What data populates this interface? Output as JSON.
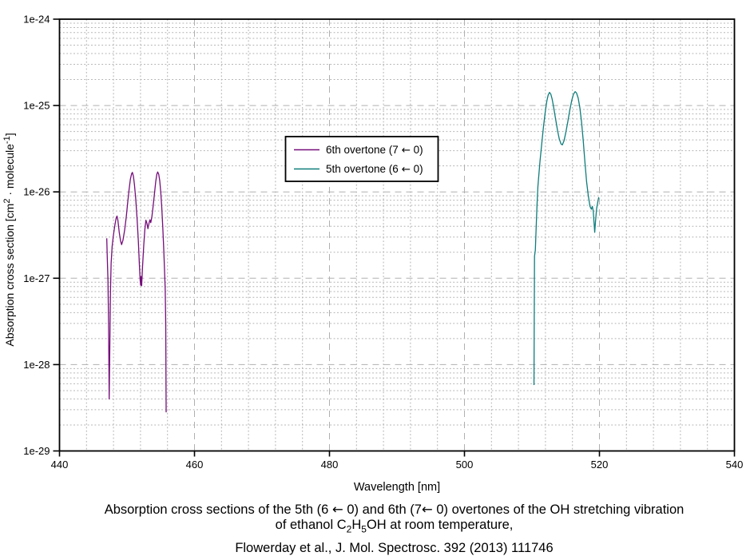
{
  "chart_data": {
    "type": "line",
    "xlabel": "Wavelength [nm]",
    "ylabel_parts": [
      {
        "t": "Absorption cross section [cm"
      },
      {
        "t": "2",
        "sup": true
      },
      {
        "t": " · molecule"
      },
      {
        "t": "-1",
        "sup": true
      },
      {
        "t": "]"
      }
    ],
    "xlim": [
      440,
      540
    ],
    "ylim": [
      1e-29,
      1e-24
    ],
    "x_major_ticks": [
      440,
      460,
      480,
      500,
      520,
      540
    ],
    "x_minor_step": 4,
    "y_tick_labels": [
      "1e-24",
      "1e-25",
      "1e-26",
      "1e-27",
      "1e-28",
      "1e-29"
    ],
    "grid": {
      "major": "dashed",
      "minor": "dotted",
      "color": "#b0b0b0"
    },
    "legend": {
      "entries": [
        {
          "label": "6th overtone (7 ← 0)",
          "color": "#750d7a"
        },
        {
          "label": "5th overtone (6 ← 0)",
          "color": "#0e7d7c"
        }
      ]
    },
    "series": [
      {
        "name": "6th overtone (7 ← 0)",
        "color": "#750d7a",
        "points": [
          [
            447.0,
            2.9e-27
          ],
          [
            447.08,
            1.7e-27
          ],
          [
            447.18,
            9.5e-28
          ],
          [
            447.27,
            3e-28
          ],
          [
            447.36,
            4e-29
          ],
          [
            447.45,
            1.5e-28
          ],
          [
            447.55,
            7e-28
          ],
          [
            447.65,
            1.5e-27
          ],
          [
            447.8,
            2.35e-27
          ],
          [
            448.0,
            3.2e-27
          ],
          [
            448.2,
            4.1e-27
          ],
          [
            448.4,
            5e-27
          ],
          [
            448.52,
            5.25e-27
          ],
          [
            448.65,
            4.7e-27
          ],
          [
            448.85,
            3.4e-27
          ],
          [
            449.05,
            2.7e-27
          ],
          [
            449.2,
            2.45e-27
          ],
          [
            449.4,
            2.75e-27
          ],
          [
            449.65,
            3.6e-27
          ],
          [
            449.9,
            5.2e-27
          ],
          [
            450.1,
            7.5e-27
          ],
          [
            450.3,
            1.05e-26
          ],
          [
            450.5,
            1.4e-26
          ],
          [
            450.68,
            1.62e-26
          ],
          [
            450.8,
            1.68e-26
          ],
          [
            450.95,
            1.52e-26
          ],
          [
            451.1,
            1.22e-26
          ],
          [
            451.3,
            8.2e-27
          ],
          [
            451.5,
            4.8e-27
          ],
          [
            451.68,
            2.7e-27
          ],
          [
            451.84,
            1.4e-27
          ],
          [
            451.95,
            9.5e-28
          ],
          [
            452.02,
            8.3e-28
          ],
          [
            452.1,
            1.05e-27
          ],
          [
            452.17,
            8.2e-28
          ],
          [
            452.3,
            1.35e-27
          ],
          [
            452.48,
            2.4e-27
          ],
          [
            452.65,
            3.7e-27
          ],
          [
            452.8,
            4.7e-27
          ],
          [
            452.95,
            4.35e-27
          ],
          [
            453.1,
            3.75e-27
          ],
          [
            453.28,
            4.4e-27
          ],
          [
            453.4,
            4.75e-27
          ],
          [
            453.52,
            4.4e-27
          ],
          [
            453.68,
            5.1e-27
          ],
          [
            453.85,
            6.6e-27
          ],
          [
            454.05,
            9.2e-27
          ],
          [
            454.25,
            1.3e-26
          ],
          [
            454.42,
            1.6e-26
          ],
          [
            454.55,
            1.7e-26
          ],
          [
            454.7,
            1.6e-26
          ],
          [
            454.85,
            1.35e-26
          ],
          [
            455.0,
            1e-26
          ],
          [
            455.15,
            6.6e-27
          ],
          [
            455.3,
            3.9e-27
          ],
          [
            455.44,
            2.2e-27
          ],
          [
            455.56,
            1.25e-27
          ],
          [
            455.66,
            7.5e-28
          ],
          [
            455.74,
            3e-28
          ],
          [
            455.8,
            2.8e-29
          ]
        ]
      },
      {
        "name": "5th overtone (6 ← 0)",
        "color": "#0e7d7c",
        "points": [
          [
            510.3,
            5.8e-29
          ],
          [
            510.34,
            3.5e-28
          ],
          [
            510.38,
            1.8e-27
          ],
          [
            510.5,
            2.1e-27
          ],
          [
            510.62,
            3.8e-27
          ],
          [
            510.75,
            7e-27
          ],
          [
            510.88,
            1.15e-26
          ],
          [
            511.0,
            1.5e-26
          ],
          [
            511.2,
            2.3e-26
          ],
          [
            511.45,
            3.6e-26
          ],
          [
            511.7,
            5.6e-26
          ],
          [
            511.95,
            8.2e-26
          ],
          [
            512.2,
            1.12e-25
          ],
          [
            512.4,
            1.32e-25
          ],
          [
            512.6,
            1.42e-25
          ],
          [
            512.8,
            1.35e-25
          ],
          [
            513.0,
            1.18e-25
          ],
          [
            513.25,
            9.2e-26
          ],
          [
            513.5,
            7e-26
          ],
          [
            513.8,
            5.1e-26
          ],
          [
            514.05,
            4.1e-26
          ],
          [
            514.3,
            3.6e-26
          ],
          [
            514.5,
            3.5e-26
          ],
          [
            514.75,
            3.9e-26
          ],
          [
            515.0,
            4.8e-26
          ],
          [
            515.3,
            6.4e-26
          ],
          [
            515.6,
            8.8e-26
          ],
          [
            515.9,
            1.15e-25
          ],
          [
            516.15,
            1.35e-25
          ],
          [
            516.4,
            1.45e-25
          ],
          [
            516.6,
            1.4e-25
          ],
          [
            516.85,
            1.22e-25
          ],
          [
            517.1,
            9.4e-26
          ],
          [
            517.35,
            6.4e-26
          ],
          [
            517.6,
            3.9e-26
          ],
          [
            517.85,
            2.2e-26
          ],
          [
            518.1,
            1.3e-26
          ],
          [
            518.35,
            9e-27
          ],
          [
            518.6,
            6.8e-27
          ],
          [
            518.8,
            6.3e-27
          ],
          [
            518.95,
            6.8e-27
          ],
          [
            519.08,
            6e-27
          ],
          [
            519.2,
            4.4e-27
          ],
          [
            519.3,
            3.4e-27
          ],
          [
            519.42,
            4.6e-27
          ],
          [
            519.58,
            6.4e-27
          ],
          [
            519.75,
            7.6e-27
          ],
          [
            519.9,
            8.7e-27
          ]
        ]
      }
    ]
  },
  "caption": {
    "line1": "Absorption cross sections of the 5th (6 ← 0) and 6th (7← 0) overtones of the OH stretching vibration",
    "line2_parts": [
      {
        "t": "of ethanol C"
      },
      {
        "t": "2",
        "sub": true
      },
      {
        "t": "H"
      },
      {
        "t": "5",
        "sub": true
      },
      {
        "t": "OH at room temperature,"
      }
    ],
    "line3": "Flowerday et al., J. Mol. Spectrosc. 392 (2013) 111746"
  }
}
